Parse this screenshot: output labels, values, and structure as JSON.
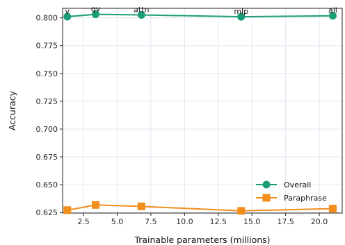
{
  "chart_data": {
    "type": "line",
    "title": "",
    "xlabel": "Trainable parameters (millions)",
    "ylabel": "Accuracy",
    "xlim": [
      0.95,
      21.7
    ],
    "ylim": [
      0.6245,
      0.8085
    ],
    "xticks": [
      2.5,
      5.0,
      7.5,
      10.0,
      12.5,
      15.0,
      17.5,
      20.0
    ],
    "xtick_labels": [
      "2.5",
      "5.0",
      "7.5",
      "10.0",
      "12.5",
      "15.0",
      "17.5",
      "20.0"
    ],
    "yticks": [
      0.625,
      0.65,
      0.675,
      0.7,
      0.725,
      0.75,
      0.775,
      0.8
    ],
    "ytick_labels": [
      "0.625",
      "0.650",
      "0.675",
      "0.700",
      "0.725",
      "0.750",
      "0.775",
      "0.800"
    ],
    "grid": true,
    "legend_position": "lower-right",
    "x": [
      1.3,
      3.4,
      6.8,
      14.2,
      21.0
    ],
    "point_labels": [
      "v",
      "qv",
      "attn",
      "mlp",
      "all"
    ],
    "series": [
      {
        "name": "Overall",
        "color": "#1b9e77",
        "marker": "circle",
        "values": [
          0.801,
          0.8031,
          0.8026,
          0.8009,
          0.8018
        ]
      },
      {
        "name": "Paraphrase",
        "color": "#f28e1c",
        "marker": "square",
        "values": [
          0.6271,
          0.6318,
          0.6305,
          0.6265,
          0.6285
        ]
      }
    ]
  }
}
